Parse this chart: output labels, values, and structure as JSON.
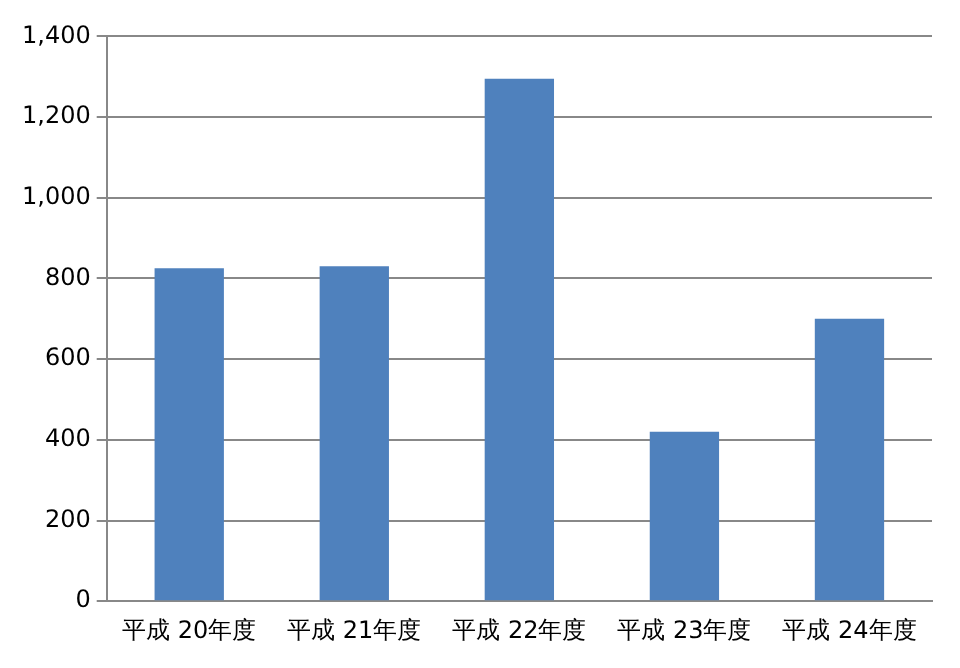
{
  "chart_data": {
    "type": "bar",
    "categories": [
      "平成 20年度",
      "平成 21年度",
      "平成 22年度",
      "平成 23年度",
      "平成 24年度"
    ],
    "values": [
      825,
      830,
      1295,
      420,
      700
    ],
    "color": "#4f81bd",
    "ylim": [
      0,
      1400
    ],
    "yticks": [
      0,
      {
        "value": 200,
        "label": "200"
      },
      {
        "value": 400,
        "label": "400"
      },
      {
        "value": 600,
        "label": "600"
      },
      {
        "value": 800,
        "label": "800"
      },
      {
        "value": 1000,
        "label": "1,000"
      },
      {
        "value": 1200,
        "label": "1,200"
      },
      {
        "value": 1400,
        "label": "1,400"
      }
    ],
    "grid": "y",
    "legend": false
  }
}
